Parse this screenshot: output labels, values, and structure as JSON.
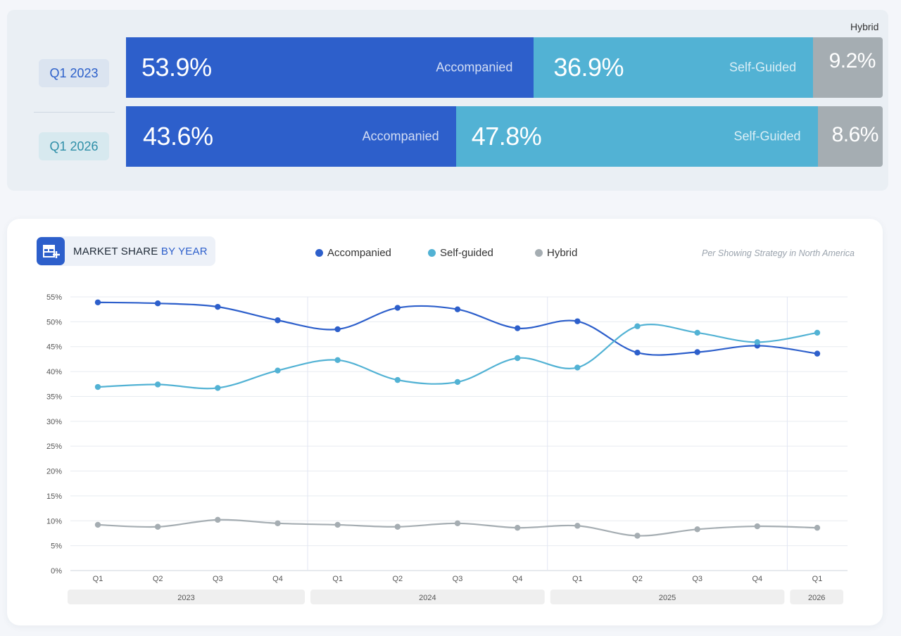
{
  "comparison": {
    "hybrid_header": "Hybrid",
    "rows": [
      {
        "period": "Q1 2023",
        "segments": [
          {
            "key": "acc",
            "value": 53.9,
            "pct": "53.9%",
            "label": "Accompanied"
          },
          {
            "key": "self",
            "value": 36.9,
            "pct": "36.9%",
            "label": "Self-Guided"
          },
          {
            "key": "hyb",
            "value": 9.2,
            "pct": "9.2%",
            "label": ""
          }
        ]
      },
      {
        "period": "Q1 2026",
        "segments": [
          {
            "key": "acc",
            "value": 43.6,
            "pct": "43.6%",
            "label": "Accompanied"
          },
          {
            "key": "self",
            "value": 47.8,
            "pct": "47.8%",
            "label": "Self-Guided"
          },
          {
            "key": "hyb",
            "value": 8.6,
            "pct": "8.6%",
            "label": ""
          }
        ]
      }
    ]
  },
  "card": {
    "title_main": "MARKET SHARE ",
    "title_accent": "BY YEAR",
    "icon": "storefront-plus-icon",
    "note": "Per Showing Strategy in North America",
    "legend": [
      {
        "label": "Accompanied",
        "color": "#2d5fcb"
      },
      {
        "label": "Self-guided",
        "color": "#52b2d4"
      },
      {
        "label": "Hybrid",
        "color": "#a5adb2"
      }
    ]
  },
  "chart_data": {
    "type": "line",
    "x": [
      "Q1",
      "Q2",
      "Q3",
      "Q4",
      "Q1",
      "Q2",
      "Q3",
      "Q4",
      "Q1",
      "Q2",
      "Q3",
      "Q4",
      "Q1"
    ],
    "year_groups": [
      {
        "label": "2023",
        "quarters": 4
      },
      {
        "label": "2024",
        "quarters": 4
      },
      {
        "label": "2025",
        "quarters": 4
      },
      {
        "label": "2026",
        "quarters": 1
      }
    ],
    "ylim": [
      0,
      55
    ],
    "yticks": [
      "0%",
      "5%",
      "10%",
      "15%",
      "20%",
      "25%",
      "30%",
      "35%",
      "40%",
      "45%",
      "50%",
      "55%"
    ],
    "series": [
      {
        "name": "Accompanied",
        "color": "#2d5fcb",
        "values": [
          53.9,
          53.7,
          53.0,
          50.3,
          48.5,
          52.8,
          52.5,
          48.7,
          50.1,
          43.8,
          43.9,
          45.2,
          43.6
        ]
      },
      {
        "name": "Self-guided",
        "color": "#52b2d4",
        "values": [
          36.9,
          37.4,
          36.7,
          40.2,
          42.3,
          38.3,
          37.9,
          42.7,
          40.8,
          49.1,
          47.8,
          45.9,
          47.8
        ]
      },
      {
        "name": "Hybrid",
        "color": "#a5adb2",
        "values": [
          9.2,
          8.8,
          10.2,
          9.5,
          9.2,
          8.8,
          9.5,
          8.6,
          9.0,
          7.0,
          8.3,
          8.9,
          8.6
        ]
      }
    ],
    "grid": true
  }
}
